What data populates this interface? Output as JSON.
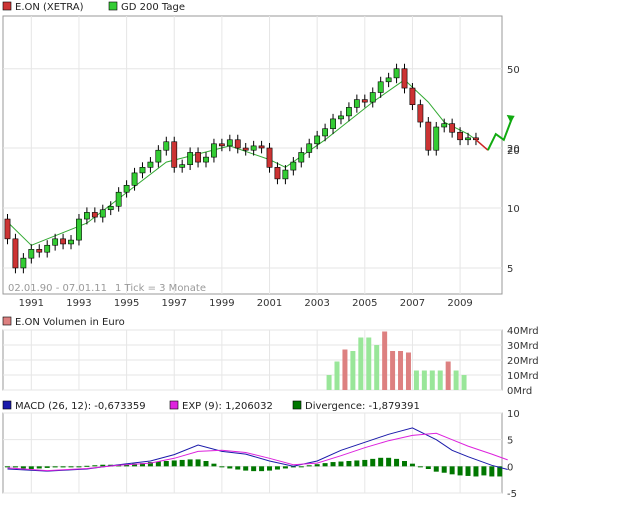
{
  "legend_main": {
    "series": [
      {
        "label": "E.ON (XETRA)",
        "color": "#cc3333"
      },
      {
        "label": "GD 200 Tage",
        "color": "#33cc33"
      }
    ]
  },
  "date_range": "02.01.90 - 07.01.11",
  "tick_note": "1 Tick = 3 Monate",
  "volume_title": "E.ON Volumen in Euro",
  "macd_legend": [
    {
      "label": "MACD (26, 12): -0,673359",
      "color": "#1a1aaa"
    },
    {
      "label": "EXP (9): 1,206032",
      "color": "#dd22dd"
    },
    {
      "label": "Divergence: -1,879391",
      "color": "#007700"
    }
  ],
  "chart_data": [
    {
      "type": "candlestick",
      "name": "E.ON (XETRA)",
      "xlabel": "",
      "ylabel": "",
      "y_scale": "log",
      "ylim": [
        3.7,
        92
      ],
      "x_ticks": [
        "1991",
        "1993",
        "1995",
        "1997",
        "1999",
        "2001",
        "2003",
        "2005",
        "2007",
        "2009"
      ],
      "y_ticks": [
        5,
        10,
        20,
        50
      ],
      "grid": true,
      "colors": {
        "up": "#33cc33",
        "down": "#cc3333",
        "wick": "#000000",
        "ma": "#33aa33",
        "forecast": "#11aa11"
      },
      "candles": [
        [
          8.8,
          7.0
        ],
        [
          7.0,
          5.0
        ],
        [
          5.0,
          5.6
        ],
        [
          5.6,
          6.2
        ],
        [
          6.2,
          6.0
        ],
        [
          6.0,
          6.5
        ],
        [
          6.5,
          7.0
        ],
        [
          7.0,
          6.6
        ],
        [
          6.6,
          6.9
        ],
        [
          6.9,
          8.8
        ],
        [
          8.8,
          9.5
        ],
        [
          9.5,
          9.0
        ],
        [
          9.0,
          9.8
        ],
        [
          9.8,
          10.2
        ],
        [
          10.2,
          12.0
        ],
        [
          12.0,
          13.0
        ],
        [
          13.0,
          15.0
        ],
        [
          15.0,
          16.0
        ],
        [
          16.0,
          17.0
        ],
        [
          17.0,
          19.5
        ],
        [
          19.5,
          21.5
        ],
        [
          21.5,
          16.0
        ],
        [
          16.0,
          16.5
        ],
        [
          16.5,
          19.0
        ],
        [
          19.0,
          17.0
        ],
        [
          17.0,
          18.0
        ],
        [
          18.0,
          21.0
        ],
        [
          21.0,
          20.5
        ],
        [
          20.5,
          22.0
        ],
        [
          22.0,
          20.0
        ],
        [
          20.0,
          19.5
        ],
        [
          19.5,
          20.5
        ],
        [
          20.5,
          20.0
        ],
        [
          20.0,
          16.0
        ],
        [
          16.0,
          14.0
        ],
        [
          14.0,
          15.5
        ],
        [
          15.5,
          17.0
        ],
        [
          17.0,
          19.0
        ],
        [
          19.0,
          21.0
        ],
        [
          21.0,
          23.0
        ],
        [
          23.0,
          25.0
        ],
        [
          25.0,
          28.0
        ],
        [
          28.0,
          29.0
        ],
        [
          29.0,
          32.0
        ],
        [
          32.0,
          35.0
        ],
        [
          35.0,
          34.0
        ],
        [
          34.0,
          38.0
        ],
        [
          38.0,
          43.0
        ],
        [
          43.0,
          45.0
        ],
        [
          45.0,
          50.0
        ],
        [
          50.0,
          40.0
        ],
        [
          40.0,
          33.0
        ],
        [
          33.0,
          27.0
        ],
        [
          27.0,
          19.5
        ],
        [
          19.5,
          25.5
        ],
        [
          25.5,
          26.5
        ],
        [
          26.5,
          24.0
        ],
        [
          24.0,
          22.0
        ],
        [
          22.0,
          22.5
        ],
        [
          22.5,
          22.0
        ]
      ],
      "moving_average": [
        [
          0,
          8.5
        ],
        [
          3,
          6.5
        ],
        [
          10,
          8.4
        ],
        [
          20,
          17.0
        ],
        [
          28,
          20.5
        ],
        [
          33,
          17.5
        ],
        [
          35,
          16.0
        ],
        [
          40,
          22.0
        ],
        [
          46,
          34.0
        ],
        [
          50,
          44.0
        ],
        [
          53,
          34.0
        ],
        [
          55,
          27.0
        ],
        [
          58,
          23.5
        ],
        [
          59,
          22.0
        ]
      ],
      "forecast_red": [
        [
          59,
          22.0
        ],
        [
          60.5,
          19.5
        ]
      ],
      "forecast_green": [
        [
          60.5,
          19.5
        ],
        [
          61.5,
          23.5
        ],
        [
          62.5,
          22.0
        ],
        [
          63.5,
          28.0
        ]
      ],
      "last_value_label": "20"
    },
    {
      "type": "bar",
      "name": "E.ON Volumen in Euro",
      "y_ticks": [
        "0Mrd",
        "10Mrd",
        "20Mrd",
        "30Mrd",
        "40Mrd"
      ],
      "ylim": [
        0,
        40
      ],
      "colors": {
        "up": "#99e699",
        "down": "#dd8080"
      },
      "bars": [
        [
          45,
          10,
          "up"
        ],
        [
          46,
          19,
          "up"
        ],
        [
          47,
          27,
          "down"
        ],
        [
          48,
          26,
          "up"
        ],
        [
          49,
          35,
          "up"
        ],
        [
          50,
          35,
          "up"
        ],
        [
          51,
          30,
          "up"
        ],
        [
          52,
          39,
          "down"
        ],
        [
          53,
          26,
          "down"
        ],
        [
          54,
          26,
          "down"
        ],
        [
          55,
          25,
          "down"
        ],
        [
          56,
          13,
          "up"
        ],
        [
          57,
          13,
          "up"
        ],
        [
          58,
          13,
          "up"
        ],
        [
          59,
          13,
          "up"
        ],
        [
          60,
          19,
          "down"
        ],
        [
          61,
          13,
          "up"
        ],
        [
          62,
          10,
          "up"
        ]
      ]
    },
    {
      "type": "line",
      "name": "MACD",
      "ylim": [
        -5,
        10
      ],
      "y_ticks": [
        -5,
        0,
        5,
        10
      ],
      "series": [
        {
          "name": "MACD (26, 12)",
          "color": "#1a1aaa",
          "points": [
            [
              0,
              -0.5
            ],
            [
              5,
              -0.9
            ],
            [
              10,
              -0.5
            ],
            [
              14,
              0.3
            ],
            [
              18,
              1.0
            ],
            [
              21,
              2.2
            ],
            [
              24,
              4.0
            ],
            [
              27,
              2.8
            ],
            [
              30,
              2.3
            ],
            [
              33,
              1.0
            ],
            [
              36,
              0.0
            ],
            [
              39,
              1.0
            ],
            [
              42,
              3.0
            ],
            [
              45,
              4.5
            ],
            [
              48,
              6.0
            ],
            [
              51,
              7.2
            ],
            [
              54,
              5.0
            ],
            [
              56,
              3.0
            ],
            [
              58,
              1.8
            ],
            [
              61,
              0.2
            ],
            [
              63,
              -0.6
            ]
          ]
        },
        {
          "name": "EXP (9)",
          "color": "#dd22dd",
          "points": [
            [
              0,
              -0.3
            ],
            [
              5,
              -0.8
            ],
            [
              10,
              -0.4
            ],
            [
              14,
              0.2
            ],
            [
              18,
              0.6
            ],
            [
              21,
              1.5
            ],
            [
              24,
              2.8
            ],
            [
              27,
              3.0
            ],
            [
              30,
              2.6
            ],
            [
              33,
              1.5
            ],
            [
              36,
              0.3
            ],
            [
              39,
              0.6
            ],
            [
              42,
              2.0
            ],
            [
              45,
              3.5
            ],
            [
              48,
              4.8
            ],
            [
              51,
              5.8
            ],
            [
              54,
              6.2
            ],
            [
              56,
              5.0
            ],
            [
              58,
              3.8
            ],
            [
              61,
              2.3
            ],
            [
              63,
              1.2
            ]
          ]
        }
      ],
      "divergence": [
        [
          0,
          -0.1
        ],
        [
          1,
          -0.2
        ],
        [
          2,
          -0.4
        ],
        [
          3,
          -0.5
        ],
        [
          4,
          -0.4
        ],
        [
          5,
          -0.3
        ],
        [
          6,
          -0.2
        ],
        [
          7,
          -0.2
        ],
        [
          8,
          -0.1
        ],
        [
          9,
          0.0
        ],
        [
          10,
          0.1
        ],
        [
          11,
          0.2
        ],
        [
          12,
          0.3
        ],
        [
          13,
          0.3
        ],
        [
          14,
          0.3
        ],
        [
          15,
          0.4
        ],
        [
          16,
          0.5
        ],
        [
          17,
          0.6
        ],
        [
          18,
          0.8
        ],
        [
          19,
          0.9
        ],
        [
          20,
          1.0
        ],
        [
          21,
          1.1
        ],
        [
          22,
          1.2
        ],
        [
          23,
          1.3
        ],
        [
          24,
          1.3
        ],
        [
          25,
          1.0
        ],
        [
          26,
          0.5
        ],
        [
          27,
          0.0
        ],
        [
          28,
          -0.4
        ],
        [
          29,
          -0.6
        ],
        [
          30,
          -0.8
        ],
        [
          31,
          -0.9
        ],
        [
          32,
          -0.9
        ],
        [
          33,
          -0.8
        ],
        [
          34,
          -0.6
        ],
        [
          35,
          -0.4
        ],
        [
          36,
          -0.2
        ],
        [
          37,
          0.0
        ],
        [
          38,
          0.2
        ],
        [
          39,
          0.4
        ],
        [
          40,
          0.6
        ],
        [
          41,
          0.8
        ],
        [
          42,
          0.9
        ],
        [
          43,
          1.0
        ],
        [
          44,
          1.1
        ],
        [
          45,
          1.2
        ],
        [
          46,
          1.4
        ],
        [
          47,
          1.6
        ],
        [
          48,
          1.6
        ],
        [
          49,
          1.4
        ],
        [
          50,
          1.0
        ],
        [
          51,
          0.5
        ],
        [
          52,
          0.0
        ],
        [
          53,
          -0.5
        ],
        [
          54,
          -1.0
        ],
        [
          55,
          -1.2
        ],
        [
          56,
          -1.5
        ],
        [
          57,
          -1.7
        ],
        [
          58,
          -1.8
        ],
        [
          59,
          -1.9
        ],
        [
          60,
          -1.7
        ],
        [
          61,
          -1.9
        ],
        [
          62,
          -1.9
        ]
      ]
    }
  ]
}
